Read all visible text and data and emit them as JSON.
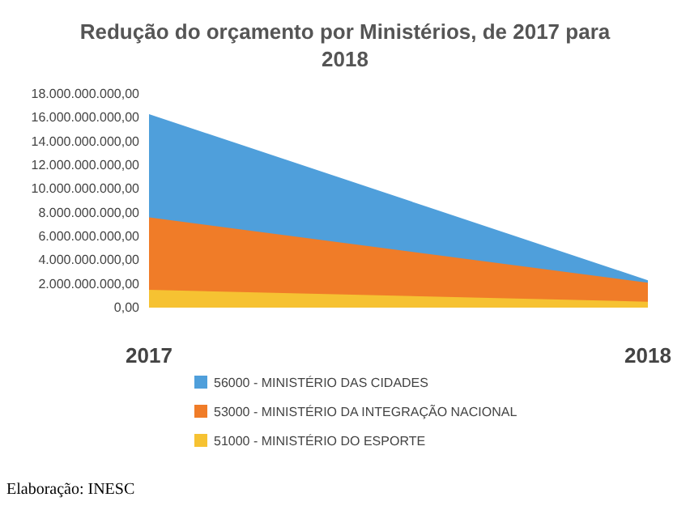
{
  "chart_data": {
    "type": "area",
    "title": "Redução do orçamento por Ministérios, de 2017 para 2018",
    "categories": [
      "2017",
      "2018"
    ],
    "series": [
      {
        "name": "56000 - MINISTÉRIO DAS CIDADES",
        "color": "#4f9fdb",
        "values": [
          16300000000,
          2300000000
        ]
      },
      {
        "name": "53000 - MINISTÉRIO DA INTEGRAÇÃO NACIONAL",
        "color": "#f07c28",
        "values": [
          7600000000,
          2100000000
        ]
      },
      {
        "name": "51000 - MINISTÉRIO DO ESPORTE",
        "color": "#f6c232",
        "values": [
          1500000000,
          500000000
        ]
      }
    ],
    "ylim": [
      0,
      18000000000
    ],
    "yticks": [
      {
        "value": 0,
        "label": "0,00"
      },
      {
        "value": 2000000000,
        "label": "2.000.000.000,00"
      },
      {
        "value": 4000000000,
        "label": "4.000.000.000,00"
      },
      {
        "value": 6000000000,
        "label": "6.000.000.000,00"
      },
      {
        "value": 8000000000,
        "label": "8.000.000.000,00"
      },
      {
        "value": 10000000000,
        "label": "10.000.000.000,00"
      },
      {
        "value": 12000000000,
        "label": "12.000.000.000,00"
      },
      {
        "value": 14000000000,
        "label": "14.000.000.000,00"
      },
      {
        "value": 16000000000,
        "label": "16.000.000.000,00"
      },
      {
        "value": 18000000000,
        "label": "18.000.000.000,00"
      }
    ],
    "grid": false,
    "legend": "bottom",
    "annotations": [
      "Elaboração: INESC"
    ]
  }
}
